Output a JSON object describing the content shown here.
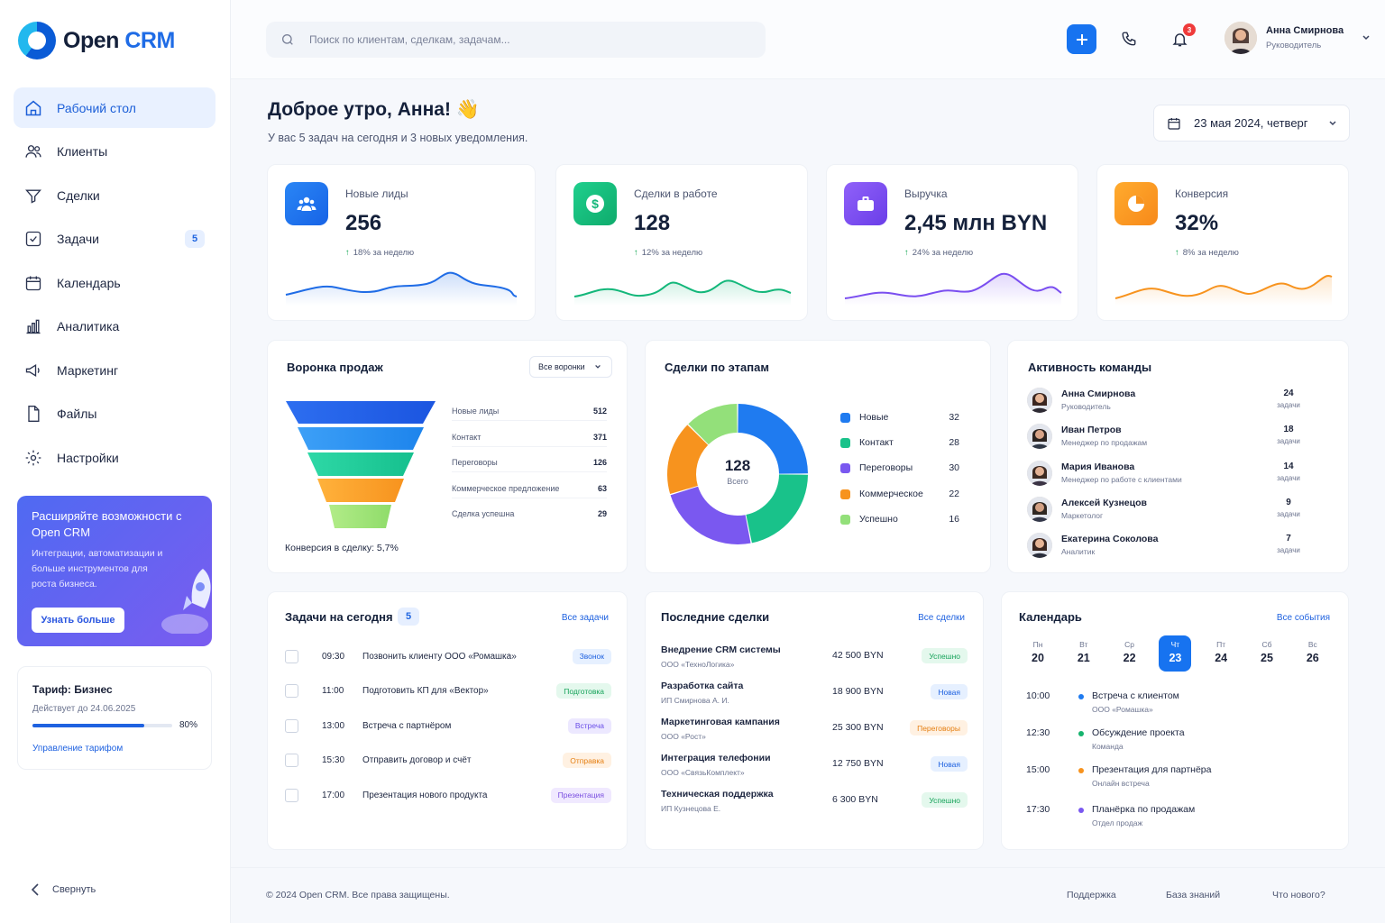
{
  "app": {
    "logo_open": "Open",
    "logo_crm": "CRM"
  },
  "sidebar": {
    "items": [
      {
        "label": "Рабочий стол",
        "icon": "home-icon",
        "active": true
      },
      {
        "label": "Клиенты",
        "icon": "users-icon"
      },
      {
        "label": "Сделки",
        "icon": "handshake-icon"
      },
      {
        "label": "Задачи",
        "icon": "checkbox-icon",
        "badge": "5"
      },
      {
        "label": "Календарь",
        "icon": "calendar-icon"
      },
      {
        "label": "Аналитика",
        "icon": "chart-icon"
      },
      {
        "label": "Маркетинг",
        "icon": "megaphone-icon"
      },
      {
        "label": "Файлы",
        "icon": "file-icon"
      },
      {
        "label": "Настройки",
        "icon": "gear-icon"
      }
    ],
    "promo": {
      "title": "Расширяйте возможности с Open CRM",
      "text": "Интеграции, автоматизации и больше инструментов для роста бизнеса.",
      "button": "Узнать больше"
    },
    "tariff": {
      "title": "Тариф: Бизнес",
      "valid": "Действует до 24.06.2025",
      "percent": "80%",
      "progress": 0.8,
      "link": "Управление тарифом"
    },
    "collapse": "Свернуть"
  },
  "header": {
    "search_placeholder": "Поиск по клиентам, сделкам, задачам...",
    "notifications": "3",
    "user_name": "Анна Смирнова",
    "user_role": "Руководитель"
  },
  "greeting": {
    "title": "Доброе утро, Анна! 👋",
    "subtitle": "У вас 5 задач на сегодня и 3 новых уведомления.",
    "date": "23 мая 2024, четверг"
  },
  "kpis": [
    {
      "label": "Новые лиды",
      "value": "256",
      "trend": "18% за неделю",
      "color": "#1f6ce6"
    },
    {
      "label": "Сделки в работе",
      "value": "128",
      "trend": "12% за неделю",
      "color": "#13b77a"
    },
    {
      "label": "Выручка",
      "value": "2,45 млн BYN",
      "trend": "24% за неделю",
      "color": "#7a4ef0"
    },
    {
      "label": "Конверсия",
      "value": "32%",
      "trend": "8% за неделю",
      "color": "#f79a1c"
    }
  ],
  "funnel": {
    "title": "Воронка продаж",
    "filter": "Все воронки",
    "rows": [
      {
        "label": "Новые лиды",
        "value": "512"
      },
      {
        "label": "Контакт",
        "value": "371"
      },
      {
        "label": "Переговоры",
        "value": "126"
      },
      {
        "label": "Коммерческое предложение",
        "value": "63"
      },
      {
        "label": "Сделка успешна",
        "value": "29"
      }
    ],
    "conversion": "Конверсия в сделку: 5,7%"
  },
  "stages": {
    "title": "Сделки по этапам",
    "total": "128",
    "total_label": "Всего",
    "rows": [
      {
        "label": "Новые",
        "value": "32",
        "color": "#1f7bf0"
      },
      {
        "label": "Контакт",
        "value": "28",
        "color": "#19c28a"
      },
      {
        "label": "Переговоры",
        "value": "30",
        "color": "#7a58f0"
      },
      {
        "label": "Коммерческое",
        "value": "22",
        "color": "#f7931e"
      },
      {
        "label": "Успешно",
        "value": "16",
        "color": "#93e07a"
      }
    ]
  },
  "team": {
    "title": "Активность команды",
    "unit": "задачи",
    "members": [
      {
        "name": "Анна Смирнова",
        "role": "Руководитель",
        "count": "24"
      },
      {
        "name": "Иван Петров",
        "role": "Менеджер по продажам",
        "count": "18"
      },
      {
        "name": "Мария Иванова",
        "role": "Менеджер по работе с клиентами",
        "count": "14"
      },
      {
        "name": "Алексей Кузнецов",
        "role": "Маркетолог",
        "count": "9"
      },
      {
        "name": "Екатерина Соколова",
        "role": "Аналитик",
        "count": "7"
      }
    ]
  },
  "tasks": {
    "title": "Задачи на сегодня",
    "badge": "5",
    "link": "Все задачи",
    "items": [
      {
        "time": "09:30",
        "text": "Позвонить клиенту ООО «Ромашка»",
        "tag": "Звонок",
        "tag_bg": "#e6f0ff",
        "tag_fg": "#1f62e0"
      },
      {
        "time": "11:00",
        "text": "Подготовить КП для «Вектор»",
        "tag": "Подготовка",
        "tag_bg": "#e4f8ed",
        "tag_fg": "#16a35a"
      },
      {
        "time": "13:00",
        "text": "Встреча с партнёром",
        "tag": "Встреча",
        "tag_bg": "#ece8ff",
        "tag_fg": "#6a4ee8"
      },
      {
        "time": "15:30",
        "text": "Отправить договор и счёт",
        "tag": "Отправка",
        "tag_bg": "#fff1e2",
        "tag_fg": "#e57f12"
      },
      {
        "time": "17:00",
        "text": "Презентация нового продукта",
        "tag": "Презентация",
        "tag_bg": "#f0e9ff",
        "tag_fg": "#7a4ee0"
      }
    ]
  },
  "deals": {
    "title": "Последние сделки",
    "link": "Все сделки",
    "items": [
      {
        "name": "Внедрение CRM системы",
        "client": "ООО «ТехноЛогика»",
        "amount": "42 500 BYN",
        "status": "Успешно",
        "tag_bg": "#e4f8ed",
        "tag_fg": "#16a35a"
      },
      {
        "name": "Разработка сайта",
        "client": "ИП Смирнова А. И.",
        "amount": "18 900 BYN",
        "status": "Новая",
        "tag_bg": "#e6f0ff",
        "tag_fg": "#1f62e0"
      },
      {
        "name": "Маркетинговая кампания",
        "client": "ООО «Рост»",
        "amount": "25 300 BYN",
        "status": "Переговоры",
        "tag_bg": "#fff1e2",
        "tag_fg": "#e57f12"
      },
      {
        "name": "Интеграция телефонии",
        "client": "ООО «СвязьКомплект»",
        "amount": "12 750 BYN",
        "status": "Новая",
        "tag_bg": "#e6f0ff",
        "tag_fg": "#1f62e0"
      },
      {
        "name": "Техническая поддержка",
        "client": "ИП Кузнецова Е.",
        "amount": "6 300 BYN",
        "status": "Успешно",
        "tag_bg": "#e4f8ed",
        "tag_fg": "#16a35a"
      }
    ]
  },
  "calendar": {
    "title": "Календарь",
    "link": "Все события",
    "days": [
      {
        "w": "Пн",
        "d": "20"
      },
      {
        "w": "Вт",
        "d": "21"
      },
      {
        "w": "Ср",
        "d": "22"
      },
      {
        "w": "Чт",
        "d": "23",
        "selected": true
      },
      {
        "w": "Пт",
        "d": "24"
      },
      {
        "w": "Сб",
        "d": "25"
      },
      {
        "w": "Вс",
        "d": "26"
      }
    ],
    "events": [
      {
        "time": "10:00",
        "title": "Встреча с клиентом",
        "sub": "ООО «Ромашка»",
        "color": "#1f7bf0"
      },
      {
        "time": "12:30",
        "title": "Обсуждение проекта",
        "sub": "Команда",
        "color": "#16b36e"
      },
      {
        "time": "15:00",
        "title": "Презентация для партнёра",
        "sub": "Онлайн встреча",
        "color": "#f7931e"
      },
      {
        "time": "17:30",
        "title": "Планёрка по продажам",
        "sub": "Отдел продаж",
        "color": "#7a58f0"
      }
    ]
  },
  "footer": {
    "copyright": "© 2024 Open CRM. Все права защищены.",
    "links": [
      "Поддержка",
      "База знаний",
      "Что нового?"
    ]
  }
}
